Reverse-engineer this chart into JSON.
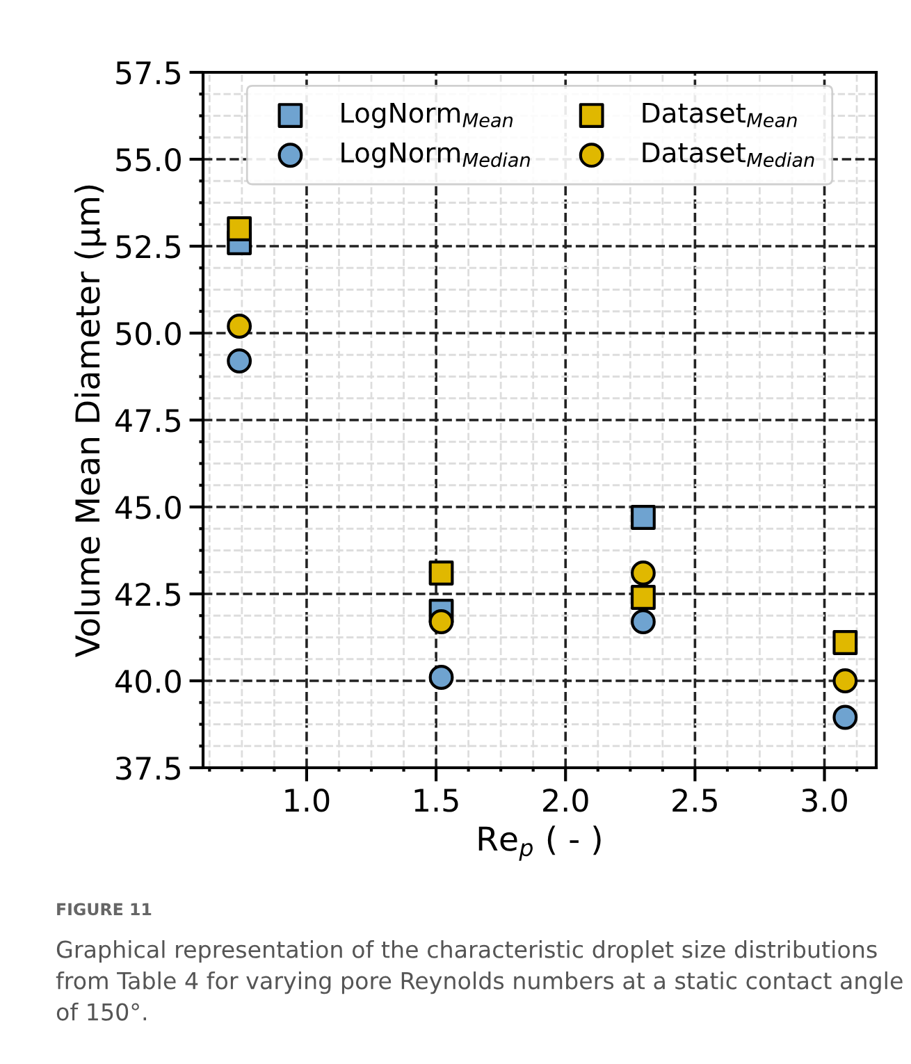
{
  "chart_data": {
    "type": "scatter",
    "xlabel": "Re$_{p}$ ( - )",
    "ylabel": "Volume Mean Diameter (μm)",
    "x": [
      0.74,
      1.52,
      2.3,
      3.08
    ],
    "series": [
      {
        "name": "LogNorm$_{Mean}$",
        "color": "#6fa3d0",
        "marker": "square",
        "values": [
          52.6,
          42.0,
          44.7,
          null
        ]
      },
      {
        "name": "LogNorm$_{Median}$",
        "color": "#6fa3d0",
        "marker": "circle",
        "values": [
          49.2,
          40.1,
          41.7,
          38.95
        ]
      },
      {
        "name": "Dataset$_{Mean}$",
        "color": "#e0b800",
        "marker": "square",
        "values": [
          53.0,
          43.1,
          42.4,
          41.1
        ]
      },
      {
        "name": "Dataset$_{Median}$",
        "color": "#e0b800",
        "marker": "circle",
        "values": [
          50.2,
          41.7,
          43.1,
          40.0
        ]
      }
    ],
    "xlim": [
      0.6,
      3.2
    ],
    "xticks": [
      {
        "value": 1.0,
        "label": "1.0"
      },
      {
        "value": 1.5,
        "label": "1.5"
      },
      {
        "value": 2.0,
        "label": "2.0"
      },
      {
        "value": 2.5,
        "label": "2.5"
      },
      {
        "value": 3.0,
        "label": "3.0"
      }
    ],
    "ylim": [
      37.5,
      57.5
    ],
    "yticks": [
      37.5,
      {
        "value": 40.0,
        "label": "40.0"
      },
      42.5,
      {
        "value": 45.0,
        "label": "45.0"
      },
      47.5,
      {
        "value": 50.0,
        "label": "50.0"
      },
      52.5,
      {
        "value": 55.0,
        "label": "55.0"
      },
      57.5
    ],
    "grid": true,
    "legend": "top",
    "annotations": [
      "FIGURE 11",
      "Graphical representation of the characteristic droplet size distributions from Table 4 for varying pore Reynolds numbers at a static contact angle of 150°."
    ]
  }
}
